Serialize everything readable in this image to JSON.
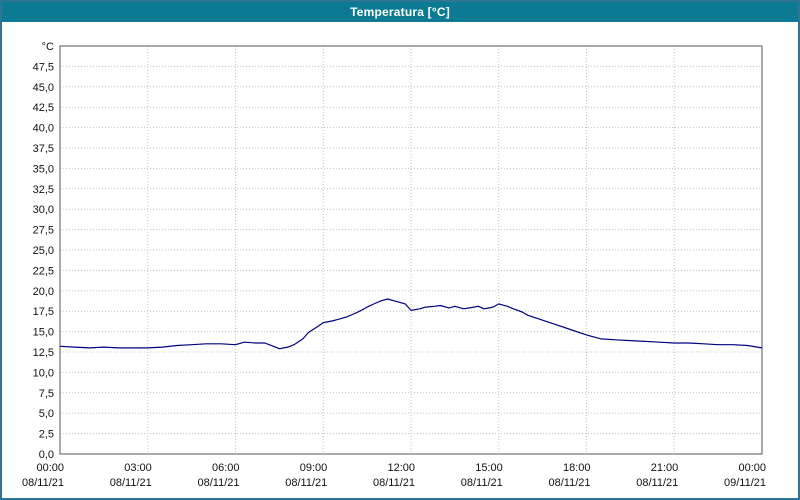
{
  "window": {
    "title": "Temperatura [°C]",
    "titlebar_color": "#0d7a94",
    "border_color": "#2f7591"
  },
  "chart_data": {
    "type": "line",
    "title": "Temperatura [°C]",
    "unit_label": "°C",
    "line_color": "#00007f",
    "grid_color": "#c3c3c3",
    "axis_color": "#555555",
    "tick_label_color": "#111111",
    "ylim": [
      0,
      50
    ],
    "ytick_step": 2.5,
    "ytick_labels": [
      "0,0",
      "2,5",
      "5,0",
      "7,5",
      "10,0",
      "12,5",
      "15,0",
      "17,5",
      "20,0",
      "22,5",
      "25,0",
      "27,5",
      "30,0",
      "32,5",
      "35,0",
      "37,5",
      "40,0",
      "42,5",
      "45,0",
      "47,5"
    ],
    "x_range_hours": [
      0,
      24
    ],
    "x_ticks": [
      {
        "hour": 0,
        "time": "00:00",
        "date": "08/11/21"
      },
      {
        "hour": 3,
        "time": "03:00",
        "date": "08/11/21"
      },
      {
        "hour": 6,
        "time": "06:00",
        "date": "08/11/21"
      },
      {
        "hour": 9,
        "time": "09:00",
        "date": "08/11/21"
      },
      {
        "hour": 12,
        "time": "12:00",
        "date": "08/11/21"
      },
      {
        "hour": 15,
        "time": "15:00",
        "date": "08/11/21"
      },
      {
        "hour": 18,
        "time": "18:00",
        "date": "08/11/21"
      },
      {
        "hour": 21,
        "time": "21:00",
        "date": "08/11/21"
      },
      {
        "hour": 24,
        "time": "00:00",
        "date": "09/11/21"
      }
    ],
    "grid": true,
    "legend": "none",
    "series": [
      {
        "name": "Temperatura",
        "color": "#00007f",
        "points": [
          [
            0.0,
            13.2
          ],
          [
            0.5,
            13.1
          ],
          [
            1.0,
            13.0
          ],
          [
            1.5,
            13.1
          ],
          [
            2.0,
            13.0
          ],
          [
            2.5,
            13.0
          ],
          [
            3.0,
            13.0
          ],
          [
            3.5,
            13.1
          ],
          [
            4.0,
            13.3
          ],
          [
            4.5,
            13.4
          ],
          [
            5.0,
            13.5
          ],
          [
            5.5,
            13.5
          ],
          [
            6.0,
            13.4
          ],
          [
            6.3,
            13.7
          ],
          [
            6.7,
            13.6
          ],
          [
            7.0,
            13.6
          ],
          [
            7.3,
            13.2
          ],
          [
            7.5,
            12.9
          ],
          [
            7.8,
            13.1
          ],
          [
            8.0,
            13.4
          ],
          [
            8.3,
            14.1
          ],
          [
            8.5,
            14.9
          ],
          [
            8.8,
            15.6
          ],
          [
            9.0,
            16.1
          ],
          [
            9.3,
            16.3
          ],
          [
            9.5,
            16.5
          ],
          [
            9.8,
            16.8
          ],
          [
            10.0,
            17.1
          ],
          [
            10.3,
            17.6
          ],
          [
            10.5,
            18.0
          ],
          [
            10.8,
            18.5
          ],
          [
            11.0,
            18.8
          ],
          [
            11.2,
            19.0
          ],
          [
            11.5,
            18.7
          ],
          [
            11.8,
            18.4
          ],
          [
            12.0,
            17.6
          ],
          [
            12.3,
            17.8
          ],
          [
            12.5,
            18.0
          ],
          [
            12.8,
            18.1
          ],
          [
            13.0,
            18.2
          ],
          [
            13.3,
            17.9
          ],
          [
            13.5,
            18.1
          ],
          [
            13.8,
            17.8
          ],
          [
            14.0,
            17.9
          ],
          [
            14.3,
            18.1
          ],
          [
            14.5,
            17.8
          ],
          [
            14.8,
            18.0
          ],
          [
            15.0,
            18.4
          ],
          [
            15.3,
            18.1
          ],
          [
            15.5,
            17.8
          ],
          [
            15.8,
            17.4
          ],
          [
            16.0,
            17.0
          ],
          [
            16.5,
            16.4
          ],
          [
            17.0,
            15.8
          ],
          [
            17.5,
            15.2
          ],
          [
            18.0,
            14.6
          ],
          [
            18.5,
            14.1
          ],
          [
            19.0,
            14.0
          ],
          [
            19.5,
            13.9
          ],
          [
            20.0,
            13.8
          ],
          [
            20.5,
            13.7
          ],
          [
            21.0,
            13.6
          ],
          [
            21.5,
            13.6
          ],
          [
            22.0,
            13.5
          ],
          [
            22.5,
            13.4
          ],
          [
            23.0,
            13.4
          ],
          [
            23.5,
            13.3
          ],
          [
            24.0,
            13.0
          ]
        ]
      }
    ]
  }
}
